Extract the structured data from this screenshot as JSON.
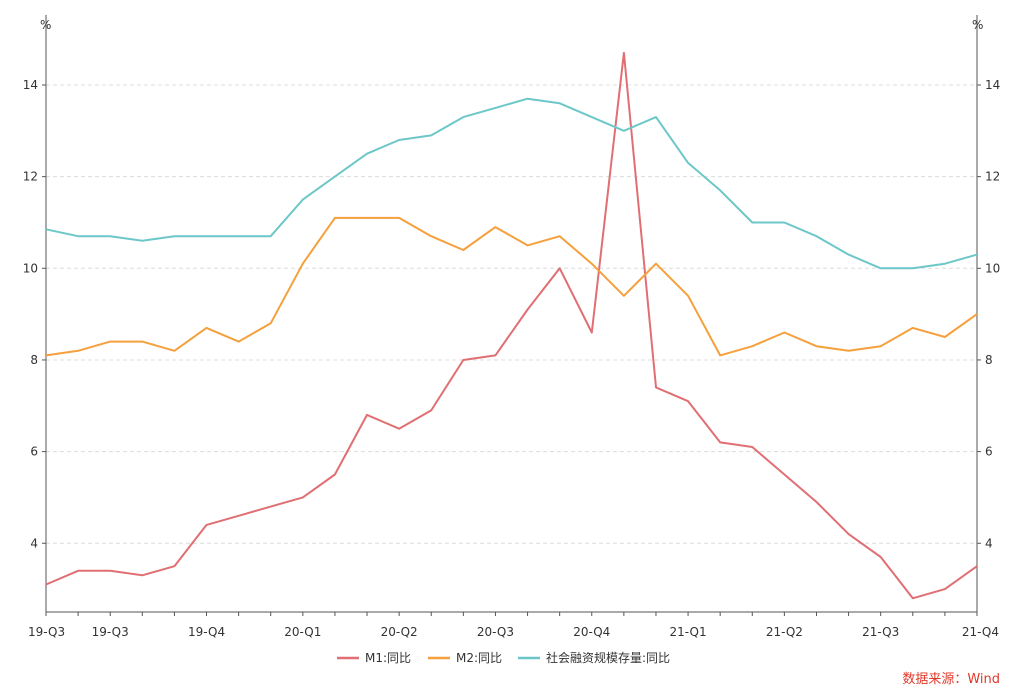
{
  "chart_data": {
    "type": "line",
    "y_unit_left": "%",
    "y_unit_right": "%",
    "ylim": [
      2.5,
      15.2
    ],
    "yticks": [
      4,
      6,
      8,
      10,
      12,
      14
    ],
    "grid": "horizontal dashed",
    "legend_position": "bottom",
    "x_tick_labels": [
      "19-Q3",
      "19-Q3",
      "19-Q4",
      "20-Q1",
      "20-Q2",
      "20-Q3",
      "20-Q4",
      "21-Q1",
      "21-Q2",
      "21-Q3",
      "21-Q4"
    ],
    "x_tick_positions": [
      0,
      2,
      5,
      8,
      11,
      14,
      17,
      20,
      23,
      26,
      29
    ],
    "series": [
      {
        "name": "M1:同比",
        "color": "#e06f73",
        "values": [
          3.1,
          3.4,
          3.4,
          3.3,
          3.5,
          4.4,
          4.6,
          4.8,
          5.0,
          5.5,
          6.8,
          6.5,
          6.9,
          8.0,
          8.1,
          9.1,
          10.0,
          8.6,
          14.7,
          7.4,
          7.1,
          6.2,
          6.1,
          5.5,
          4.9,
          4.2,
          3.7,
          2.8,
          3.0,
          3.5
        ]
      },
      {
        "name": "M2:同比",
        "color": "#f5a03c",
        "values": [
          8.1,
          8.2,
          8.4,
          8.4,
          8.2,
          8.7,
          8.4,
          8.8,
          10.1,
          11.1,
          11.1,
          11.1,
          10.7,
          10.4,
          10.9,
          10.5,
          10.7,
          10.1,
          9.4,
          10.1,
          9.4,
          8.1,
          8.3,
          8.6,
          8.3,
          8.2,
          8.3,
          8.7,
          8.5,
          9.0
        ]
      },
      {
        "name": "社会融资规模存量:同比",
        "color": "#6cc7c8",
        "values": [
          10.85,
          10.7,
          10.7,
          10.6,
          10.7,
          10.7,
          10.7,
          10.7,
          11.5,
          12.0,
          12.5,
          12.8,
          12.9,
          13.3,
          13.5,
          13.7,
          13.6,
          13.3,
          13.0,
          13.3,
          12.3,
          11.7,
          11.0,
          11.0,
          10.7,
          10.3,
          10.0,
          10.0,
          10.1,
          10.3
        ]
      }
    ]
  },
  "source_text": "数据来源：Wind"
}
